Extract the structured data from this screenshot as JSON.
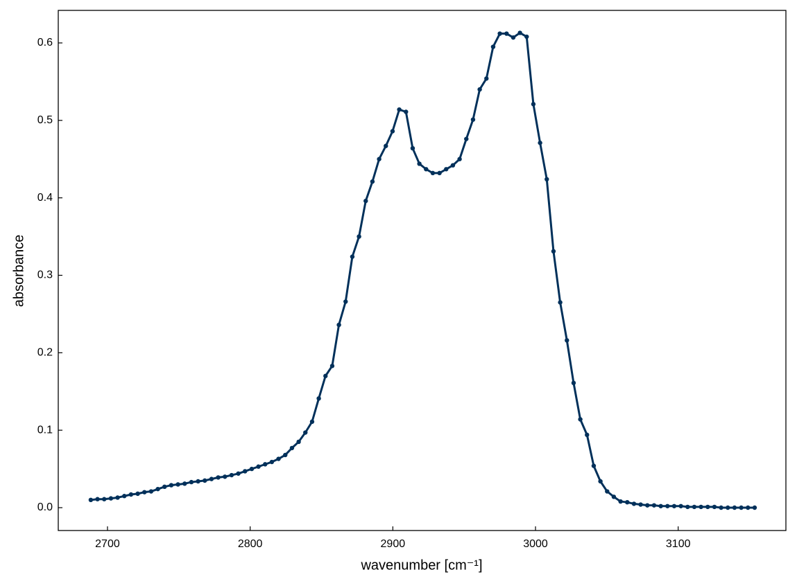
{
  "chart_data": {
    "type": "line",
    "xlabel": "wavenumber [cm⁻¹]",
    "ylabel": "absorbance",
    "x": [
      2688.3,
      2693.0,
      2697.7,
      2702.4,
      2707.1,
      2711.8,
      2716.5,
      2721.2,
      2725.9,
      2730.6,
      2735.3,
      2740.0,
      2744.7,
      2749.4,
      2754.1,
      2758.8,
      2763.5,
      2768.2,
      2772.9,
      2777.6,
      2782.3,
      2787.0,
      2791.7,
      2796.4,
      2801.1,
      2805.8,
      2810.5,
      2815.2,
      2819.9,
      2824.6,
      2829.3,
      2834.0,
      2838.7,
      2843.4,
      2848.1,
      2852.8,
      2857.5,
      2862.2,
      2866.9,
      2871.6,
      2876.3,
      2881.0,
      2885.7,
      2890.4,
      2895.1,
      2899.8,
      2904.5,
      2909.2,
      2913.9,
      2918.6,
      2923.3,
      2928.0,
      2932.7,
      2937.4,
      2942.1,
      2946.8,
      2951.5,
      2956.2,
      2960.9,
      2965.6,
      2970.3,
      2975.0,
      2979.7,
      2984.4,
      2989.1,
      2993.8,
      2998.5,
      3003.2,
      3007.9,
      3012.6,
      3017.3,
      3022.0,
      3026.7,
      3031.4,
      3036.1,
      3040.8,
      3045.5,
      3050.2,
      3054.9,
      3059.6,
      3064.3,
      3069.0,
      3073.7,
      3078.4,
      3083.1,
      3087.8,
      3092.5,
      3097.2,
      3101.9,
      3106.6,
      3111.3,
      3116.0,
      3120.7,
      3125.4,
      3130.1,
      3134.8,
      3139.5,
      3144.2,
      3148.9,
      3153.6
    ],
    "series": [
      {
        "color": "#00305a",
        "values": [
          0.01,
          0.011,
          0.011,
          0.012,
          0.013,
          0.015,
          0.017,
          0.018,
          0.02,
          0.021,
          0.024,
          0.027,
          0.029,
          0.03,
          0.031,
          0.033,
          0.034,
          0.035,
          0.037,
          0.039,
          0.04,
          0.042,
          0.044,
          0.047,
          0.05,
          0.053,
          0.056,
          0.059,
          0.063,
          0.068,
          0.077,
          0.085,
          0.097,
          0.111,
          0.141,
          0.17,
          0.183,
          0.236,
          0.266,
          0.324,
          0.35,
          0.396,
          0.421,
          0.45,
          0.467,
          0.486,
          0.514,
          0.511,
          0.464,
          0.444,
          0.437,
          0.432,
          0.432,
          0.437,
          0.442,
          0.45,
          0.476,
          0.501,
          0.54,
          0.554,
          0.595,
          0.612,
          0.612,
          0.607,
          0.613,
          0.608,
          0.521,
          0.471,
          0.424,
          0.331,
          0.265,
          0.216,
          0.161,
          0.114,
          0.094,
          0.054,
          0.034,
          0.021,
          0.014,
          0.008,
          0.007,
          0.005,
          0.004,
          0.003,
          0.003,
          0.002,
          0.002,
          0.002,
          0.002,
          0.001,
          0.001,
          0.001,
          0.001,
          0.001,
          0.0,
          0.0,
          0.0,
          0.0,
          0.0,
          0.0
        ]
      }
    ],
    "xlim": [
      2665.5,
      3175.5
    ],
    "xticks": [
      2700,
      2800,
      2900,
      3000,
      3100
    ],
    "ylim": [
      -0.0295,
      0.642
    ],
    "yticks": [
      {
        "value": 0,
        "label": "0.0"
      },
      0.1,
      0.2,
      0.3,
      0.4,
      0.5,
      0.6
    ],
    "markers": true
  }
}
